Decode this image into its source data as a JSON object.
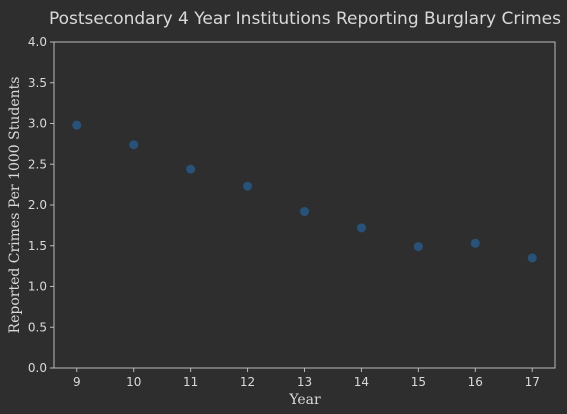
{
  "chart_data": {
    "type": "scatter",
    "title": "Postsecondary 4 Year Institutions Reporting Burglary Crimes",
    "xlabel": "Year",
    "ylabel": "Reported Crimes Per 1000 Students",
    "x": [
      9,
      10,
      11,
      12,
      13,
      14,
      15,
      16,
      17
    ],
    "y": [
      2.98,
      2.74,
      2.44,
      2.23,
      1.92,
      1.72,
      1.49,
      1.53,
      1.35
    ],
    "xticks": [
      "9",
      "10",
      "11",
      "12",
      "13",
      "14",
      "15",
      "16",
      "17"
    ],
    "yticks": [
      "0.0",
      "0.5",
      "1.0",
      "1.5",
      "2.0",
      "2.5",
      "3.0",
      "3.5",
      "4.0"
    ],
    "xlim": [
      8.6,
      17.4
    ],
    "ylim": [
      0,
      4
    ],
    "grid": false,
    "colors": {
      "background": "#2e2e2e",
      "point": "#27537a",
      "text": "#d9d9d9",
      "axis": "#bbbbbb"
    }
  }
}
